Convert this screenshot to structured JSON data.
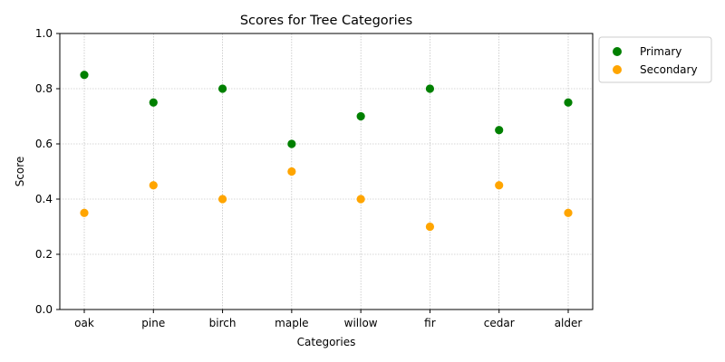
{
  "chart_data": {
    "type": "scatter",
    "title": "Scores for Tree Categories",
    "xlabel": "Categories",
    "ylabel": "Score",
    "categories": [
      "oak",
      "pine",
      "birch",
      "maple",
      "willow",
      "fir",
      "cedar",
      "alder"
    ],
    "ylim": [
      0,
      1.0
    ],
    "yticks": [
      "0.0",
      "0.2",
      "0.4",
      "0.6",
      "0.8",
      "1.0"
    ],
    "grid": true,
    "legend_position": "outside-top-right",
    "series": [
      {
        "name": "Primary",
        "color": "#008000",
        "values": [
          0.85,
          0.75,
          0.8,
          0.6,
          0.7,
          0.8,
          0.65,
          0.75
        ]
      },
      {
        "name": "Secondary",
        "color": "#ffa500",
        "values": [
          0.35,
          0.45,
          0.4,
          0.5,
          0.4,
          0.3,
          0.45,
          0.35
        ]
      }
    ]
  }
}
